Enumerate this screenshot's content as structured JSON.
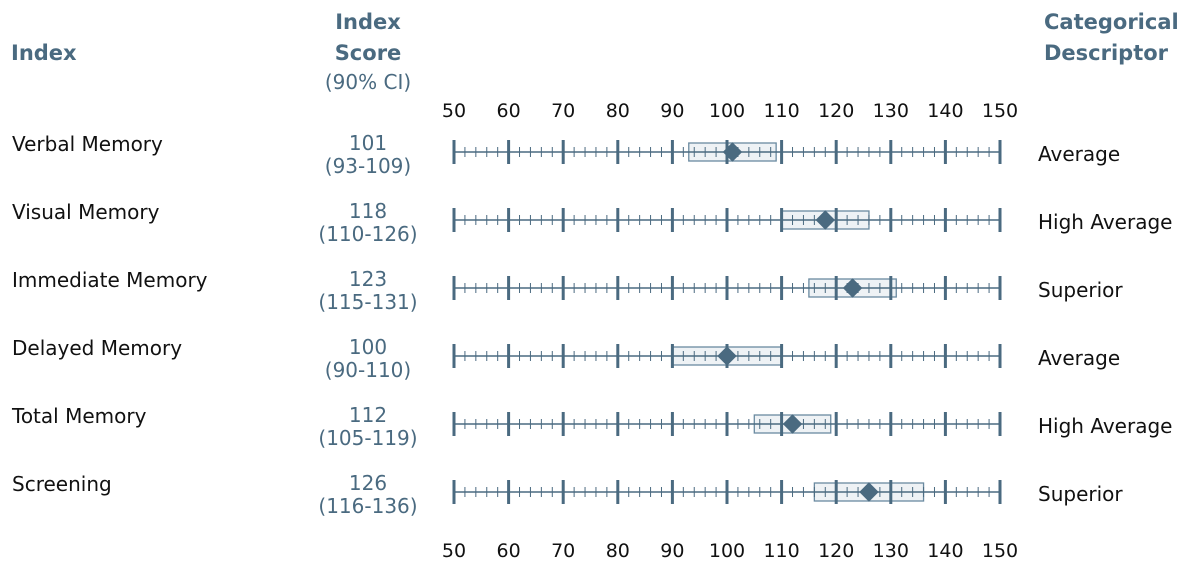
{
  "headers": {
    "index": "Index",
    "score_line1": "Index",
    "score_line2": "Score",
    "score_ci": "(90% CI)",
    "categorical_line1": "Categorical",
    "categorical_line2": "Descriptor"
  },
  "colors": {
    "header_text": "#4a6a80",
    "axis": "#4a6a80",
    "marker": "#4a6a80",
    "band_fill": "#eef2f5",
    "band_stroke": "#6a8aa0"
  },
  "chart_data": {
    "type": "scatter",
    "xlim": [
      50,
      150
    ],
    "tick_labels": [
      "50",
      "60",
      "70",
      "80",
      "90",
      "100",
      "110",
      "120",
      "130",
      "140",
      "150"
    ],
    "major_step": 10,
    "minor_step": 2,
    "rows": [
      {
        "index": "Verbal Memory",
        "score": 101,
        "score_text": "101",
        "ci_low": 93,
        "ci_high": 109,
        "ci_text": "(93-109)",
        "descriptor": "Average"
      },
      {
        "index": "Visual Memory",
        "score": 118,
        "score_text": "118",
        "ci_low": 110,
        "ci_high": 126,
        "ci_text": "(110-126)",
        "descriptor": "High Average"
      },
      {
        "index": "Immediate Memory",
        "score": 123,
        "score_text": "123",
        "ci_low": 115,
        "ci_high": 131,
        "ci_text": "(115-131)",
        "descriptor": "Superior"
      },
      {
        "index": "Delayed Memory",
        "score": 100,
        "score_text": "100",
        "ci_low": 90,
        "ci_high": 110,
        "ci_text": "(90-110)",
        "descriptor": "Average"
      },
      {
        "index": "Total Memory",
        "score": 112,
        "score_text": "112",
        "ci_low": 105,
        "ci_high": 119,
        "ci_text": "(105-119)",
        "descriptor": "High Average"
      },
      {
        "index": "Screening",
        "score": 126,
        "score_text": "126",
        "ci_low": 116,
        "ci_high": 136,
        "ci_text": "(116-136)",
        "descriptor": "Superior"
      }
    ]
  }
}
